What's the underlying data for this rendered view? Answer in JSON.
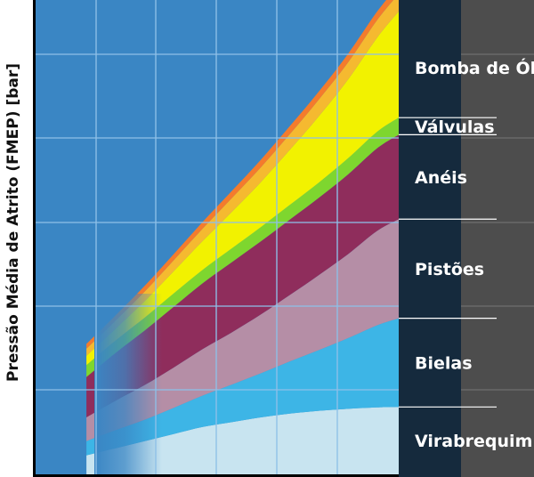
{
  "chart_data": {
    "type": "area",
    "stacked": true,
    "ylabel": "Pressão Média de Atrito (FMEP) [bar]",
    "xlabel": "",
    "grid": true,
    "x": [
      0.14,
      0.22,
      0.3,
      0.38,
      0.46,
      0.54,
      0.62,
      0.7,
      0.78,
      0.86,
      0.94,
      1.0
    ],
    "xlim": [
      0,
      1
    ],
    "ylim": [
      0,
      1
    ],
    "legend_position": "right",
    "series": [
      {
        "name": "Virabrequim",
        "color": "#c8e4f0",
        "values": [
          0.04,
          0.055,
          0.07,
          0.085,
          0.1,
          0.11,
          0.12,
          0.128,
          0.134,
          0.138,
          0.141,
          0.142
        ]
      },
      {
        "name": "Bielas",
        "color": "#3db5e6",
        "values": [
          0.03,
          0.038,
          0.045,
          0.055,
          0.066,
          0.079,
          0.093,
          0.11,
          0.128,
          0.149,
          0.173,
          0.187
        ]
      },
      {
        "name": "Pistões",
        "color": "#b58ea6",
        "values": [
          0.05,
          0.062,
          0.073,
          0.085,
          0.098,
          0.11,
          0.124,
          0.14,
          0.158,
          0.177,
          0.199,
          0.209
        ]
      },
      {
        "name": "Anéis",
        "color": "#8f2d5c",
        "values": [
          0.085,
          0.101,
          0.115,
          0.128,
          0.139,
          0.148,
          0.154,
          0.159,
          0.163,
          0.168,
          0.174,
          0.178
        ]
      },
      {
        "name": "Válvulas",
        "color": "#7ed62f",
        "values": [
          0.025,
          0.026,
          0.027,
          0.028,
          0.028,
          0.029,
          0.03,
          0.031,
          0.032,
          0.034,
          0.035,
          0.036
        ]
      },
      {
        "name": "Bomba de Óleo",
        "color": "#f2f200",
        "values": [
          0.02,
          0.025,
          0.035,
          0.047,
          0.061,
          0.077,
          0.095,
          0.116,
          0.14,
          0.166,
          0.198,
          0.224
        ]
      },
      {
        "name": "",
        "color": "#f5b930",
        "values": [
          0.015,
          0.017,
          0.02,
          0.023,
          0.026,
          0.029,
          0.031,
          0.033,
          0.035,
          0.036,
          0.037,
          0.037
        ]
      },
      {
        "name": "",
        "color": "#f47b2c",
        "values": [
          0.01,
          0.011,
          0.012,
          0.013,
          0.014,
          0.015,
          0.016,
          0.017,
          0.017,
          0.018,
          0.018,
          0.018
        ]
      }
    ],
    "legend_order": [
      "Bomba de Óleo",
      "Válvulas",
      "Anéis",
      "Pistões",
      "Bielas",
      "Virabrequim"
    ]
  },
  "colors": {
    "plot_background": "#3a86c4",
    "gridline": "#8ec0e8",
    "legend_panel": "#152a3d",
    "right_panel": "#4d4d4d",
    "right_panel_lines": "#6a6a6a",
    "legend_divider": "#ffffff",
    "axis": "#000000"
  }
}
